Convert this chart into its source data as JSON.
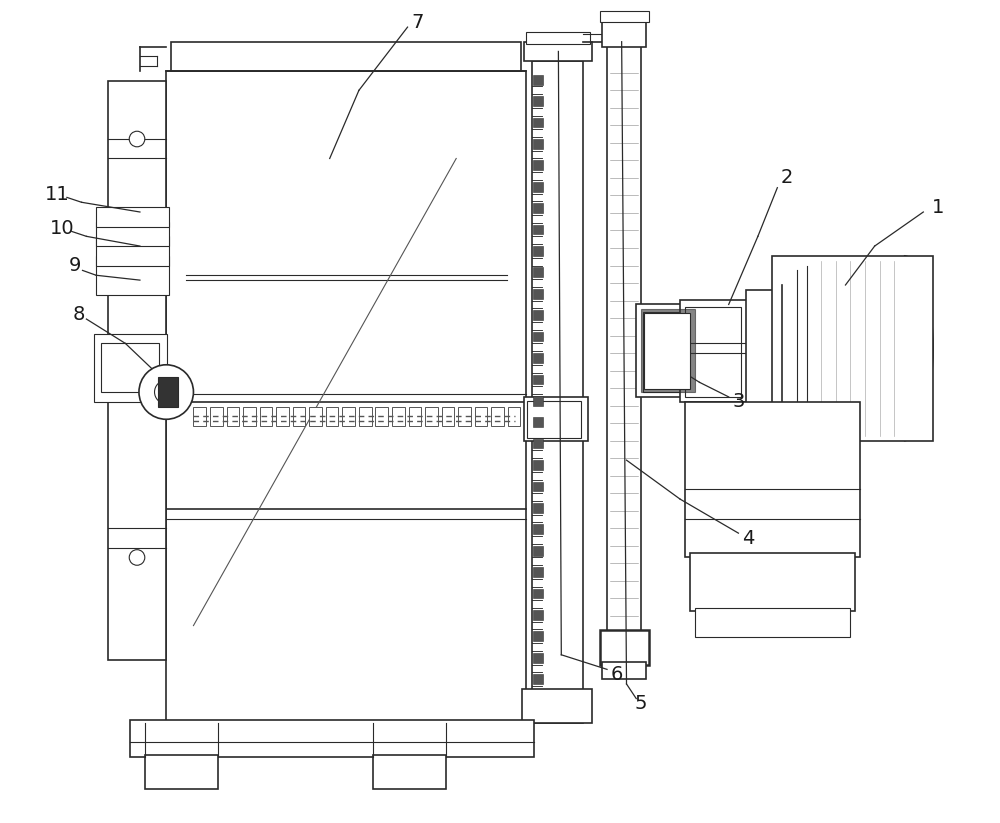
{
  "line_color": "#2a2a2a",
  "lw_thin": 0.8,
  "lw_med": 1.2,
  "lw_thick": 1.8,
  "gray_fill": "#888888",
  "dark_fill": "#333333",
  "black_fill": "#111111"
}
